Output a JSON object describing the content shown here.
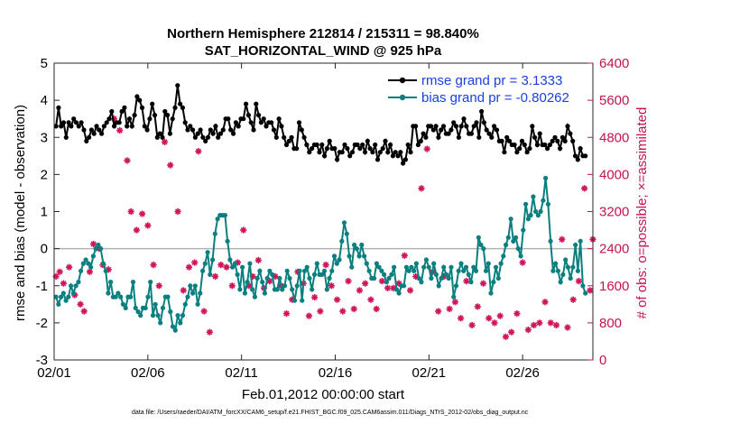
{
  "chart_data": {
    "type": "line",
    "title": "Northern Hemisphere 212814 / 215311 = 98.840%",
    "subtitle": "SAT_HORIZONTAL_WIND @ 925 hPa",
    "xlabel": "Feb.01,2012 00:00:00 start",
    "ylabel_left": "rmse and bias (model - observation)",
    "ylabel_right": "# of obs: o=possible; ×=assimilated",
    "footnote": "data file: /Users/raeder/DAI/ATM_forcXX/CAM6_setup/f.e21.FHIST_BGC.f09_025.CAM6assim.011/Diags_NTrS_2012-02/obs_diag_output.nc",
    "x_tick_labels": [
      "02/01",
      "02/06",
      "02/11",
      "02/16",
      "02/21",
      "02/26"
    ],
    "x_tick_days": [
      0,
      5,
      10,
      15,
      20,
      25
    ],
    "xlim_days": [
      0,
      28.75
    ],
    "ylim_left": [
      -3,
      5
    ],
    "y_ticks_left": [
      "-3",
      "-2",
      "-1",
      "0",
      "1",
      "2",
      "3",
      "4",
      "5"
    ],
    "ylim_right": [
      0,
      6400
    ],
    "y_ticks_right": [
      "0",
      "800",
      "1600",
      "2400",
      "3200",
      "4000",
      "4800",
      "5600",
      "6400"
    ],
    "zero_line": 0,
    "grid": false,
    "legend_position": "top-right",
    "legend": [
      {
        "label": "rmse grand pr = 3.1333",
        "color": "#000000",
        "marker": "circle"
      },
      {
        "label": "bias grand pr = -0.80262",
        "color": "#008080",
        "marker": "circle"
      }
    ],
    "colors": {
      "rmse": "#000000",
      "bias": "#0a7f7f",
      "obs": "#d1145a",
      "zero": "#b3b3b3",
      "right_axis": "#c8124f"
    },
    "series": [
      {
        "name": "rmse",
        "axis": "left",
        "values": [
          3.3,
          3.8,
          3.3,
          3.4,
          3.0,
          3.4,
          3.3,
          3.5,
          3.4,
          3.3,
          3.4,
          3.2,
          2.9,
          3.0,
          3.2,
          3.1,
          3.3,
          3.2,
          3.1,
          3.3,
          3.4,
          3.5,
          3.7,
          3.3,
          3.4,
          3.4,
          3.7,
          3.8,
          3.3,
          3.5,
          3.3,
          3.6,
          4.1,
          4.0,
          3.8,
          3.3,
          3.2,
          3.5,
          3.9,
          3.6,
          3.0,
          3.1,
          3.0,
          3.7,
          3.6,
          3.1,
          3.5,
          3.8,
          4.4,
          3.9,
          3.8,
          3.4,
          3.2,
          3.3,
          3.2,
          3.0,
          3.1,
          3.2,
          3.0,
          2.9,
          3.0,
          3.2,
          3.1,
          3.3,
          3.0,
          3.1,
          3.2,
          3.5,
          3.5,
          3.2,
          3.1,
          3.4,
          3.3,
          3.5,
          3.5,
          3.9,
          3.6,
          3.4,
          3.2,
          3.9,
          3.6,
          3.4,
          3.5,
          3.3,
          3.4,
          3.4,
          3.2,
          3.0,
          3.5,
          3.3,
          3.0,
          2.8,
          2.9,
          3.0,
          2.7,
          2.7,
          3.4,
          3.2,
          3.0,
          2.8,
          2.6,
          2.7,
          2.8,
          2.8,
          2.6,
          2.8,
          2.5,
          2.7,
          2.9,
          2.7,
          2.7,
          2.4,
          2.6,
          2.6,
          2.8,
          2.7,
          2.5,
          2.6,
          2.8,
          2.8,
          2.7,
          2.8,
          2.6,
          2.9,
          2.7,
          2.6,
          2.8,
          2.4,
          2.6,
          2.7,
          2.9,
          2.6,
          2.8,
          2.5,
          2.6,
          2.5,
          2.6,
          2.3,
          2.4,
          2.8,
          2.6,
          3.3,
          3.3,
          2.8,
          2.9,
          3.1,
          3.0,
          3.3,
          3.3,
          3.2,
          3.3,
          3.0,
          3.2,
          3.3,
          3.1,
          3.1,
          3.2,
          3.4,
          3.3,
          3.0,
          3.3,
          3.5,
          3.3,
          3.1,
          3.1,
          3.3,
          3.4,
          3.0,
          3.7,
          3.4,
          3.2,
          3.1,
          3.0,
          3.3,
          3.2,
          2.9,
          2.9,
          2.6,
          3.0,
          2.9,
          2.8,
          2.8,
          2.6,
          2.7,
          2.9,
          2.8,
          2.6,
          2.7,
          3.3,
          3.0,
          2.8,
          3.1,
          2.8,
          2.8,
          2.7,
          2.8,
          2.9,
          3.0,
          2.9,
          2.7,
          3.0,
          2.9,
          3.3,
          3.1,
          2.9,
          2.5,
          2.4,
          2.7,
          2.5,
          2.5
        ]
      },
      {
        "name": "bias",
        "axis": "left",
        "values": [
          -1.3,
          -1.5,
          -1.3,
          -1.2,
          -1.4,
          -1.3,
          -1.0,
          -1.2,
          -1.0,
          -0.9,
          -0.6,
          -0.4,
          -0.3,
          -0.4,
          -0.5,
          -0.2,
          0.0,
          0.1,
          0.0,
          -0.4,
          -0.6,
          -1.2,
          -0.9,
          -1.3,
          -1.3,
          -1.2,
          -1.3,
          -1.5,
          -1.6,
          -1.3,
          -1.3,
          -0.9,
          -1.6,
          -1.7,
          -1.8,
          -1.6,
          -1.6,
          -1.3,
          -0.9,
          -1.8,
          -1.5,
          -1.8,
          -2.0,
          -1.6,
          -1.3,
          -1.3,
          -1.7,
          -2.1,
          -2.2,
          -1.8,
          -2.0,
          -1.8,
          -1.5,
          -1.3,
          -1.0,
          -1.2,
          -1.0,
          -1.5,
          -1.2,
          -0.6,
          -0.4,
          -0.1,
          -0.7,
          -0.3,
          0.4,
          0.8,
          0.9,
          0.9,
          0.9,
          0.2,
          -0.3,
          -0.5,
          -0.4,
          -0.7,
          -1.1,
          -0.5,
          -1.2,
          -0.9,
          -0.4,
          -1.1,
          -1.3,
          -0.8,
          -0.6,
          -0.9,
          -1.2,
          -0.8,
          -0.6,
          -0.7,
          -1.1,
          -1.1,
          -0.8,
          -1.1,
          -1.0,
          -0.6,
          -0.8,
          -1.1,
          -1.4,
          -1.0,
          -0.6,
          -1.4,
          -0.6,
          -0.5,
          -0.8,
          -1.1,
          -0.7,
          -0.4,
          -0.7,
          -0.7,
          -0.6,
          -1.1,
          -0.8,
          -0.6,
          -0.2,
          -0.4,
          -0.3,
          0.2,
          0.7,
          0.4,
          -0.2,
          -0.5,
          0.1,
          0.0,
          -0.2,
          0.1,
          -0.2,
          -0.4,
          -0.6,
          -0.8,
          -0.8,
          -0.4,
          -0.5,
          -0.6,
          -0.7,
          -0.9,
          -0.8,
          -0.7,
          -0.5,
          -1.1,
          -1.2,
          -1.0,
          -1.0,
          -0.5,
          -0.6,
          -0.5,
          -0.6,
          -0.4,
          -0.8,
          -0.9,
          -0.5,
          -0.3,
          -0.5,
          -0.8,
          -0.4,
          -0.7,
          -1.0,
          -0.8,
          -0.5,
          -0.7,
          -0.8,
          -0.5,
          -1.3,
          -1.0,
          -0.6,
          -0.4,
          -0.6,
          -0.5,
          -0.7,
          -0.9,
          -0.5,
          -0.6,
          0.3,
          0.1,
          0.0,
          -0.6,
          -0.4,
          -1.2,
          -0.9,
          -0.5,
          -0.8,
          -0.4,
          -0.2,
          0.1,
          0.3,
          0.8,
          0.2,
          0.3,
          0.0,
          -0.2,
          0.5,
          1.2,
          0.8,
          0.9,
          1.4,
          1.0,
          0.9,
          1.0,
          1.3,
          1.9,
          1.2,
          0.2,
          -0.6,
          -0.4,
          -0.6,
          -0.9,
          -0.7,
          -0.3,
          -0.5,
          -0.8,
          -0.5,
          0.1,
          -0.6,
          0.2,
          -1.0,
          -1.2
        ]
      },
      {
        "name": "obs_assimilated",
        "axis": "right",
        "marker": "asterisk",
        "x_days": [
          0.1,
          0.3,
          0.5,
          0.8,
          1.1,
          1.4,
          1.6,
          1.9,
          2.1,
          2.4,
          2.6,
          2.9,
          3.2,
          3.5,
          3.9,
          4.1,
          4.4,
          4.7,
          5.0,
          5.3,
          5.6,
          5.9,
          6.2,
          6.6,
          6.9,
          7.2,
          7.5,
          7.7,
          8.0,
          8.3,
          8.6,
          8.9,
          9.2,
          9.5,
          9.8,
          10.1,
          10.4,
          10.6,
          10.9,
          11.2,
          11.5,
          11.8,
          12.1,
          12.4,
          12.7,
          13.0,
          13.3,
          13.6,
          13.9,
          14.2,
          14.5,
          14.8,
          15.1,
          15.4,
          15.7,
          16.0,
          16.3,
          16.6,
          16.9,
          17.2,
          17.5,
          17.8,
          18.1,
          18.4,
          18.7,
          19.0,
          19.3,
          19.6,
          19.9,
          20.2,
          20.5,
          20.8,
          21.1,
          21.4,
          21.7,
          22.0,
          22.3,
          22.6,
          22.9,
          23.2,
          23.5,
          23.8,
          24.1,
          24.4,
          24.7,
          25.0,
          25.3,
          25.6,
          25.9,
          26.2,
          26.5,
          26.8,
          27.1,
          27.4,
          27.7,
          28.0,
          28.3,
          28.6,
          28.75
        ],
        "values": [
          1800,
          1900,
          1650,
          2000,
          1400,
          1200,
          1050,
          1900,
          2500,
          2400,
          2050,
          1950,
          5200,
          4950,
          4300,
          3200,
          2800,
          3150,
          2900,
          2050,
          1600,
          4700,
          4200,
          3200,
          1500,
          2000,
          2100,
          4500,
          1050,
          600,
          1800,
          2050,
          2000,
          1600,
          2100,
          2800,
          1600,
          1800,
          2150,
          1550,
          1700,
          1800,
          1600,
          1000,
          1300,
          1900,
          1650,
          950,
          1350,
          1050,
          2050,
          1600,
          1300,
          1050,
          1700,
          1100,
          1500,
          1650,
          1300,
          1100,
          1700,
          1550,
          1550,
          1650,
          2250,
          1500,
          1800,
          3700,
          4550,
          1900,
          1050,
          1800,
          1100,
          1250,
          900,
          1700,
          750,
          1150,
          1650,
          900,
          800,
          950,
          500,
          600,
          1000,
          2100,
          650,
          750,
          800,
          1250,
          800,
          750,
          2600,
          700,
          1300,
          1700,
          3700,
          1500,
          2600
        ]
      }
    ]
  }
}
